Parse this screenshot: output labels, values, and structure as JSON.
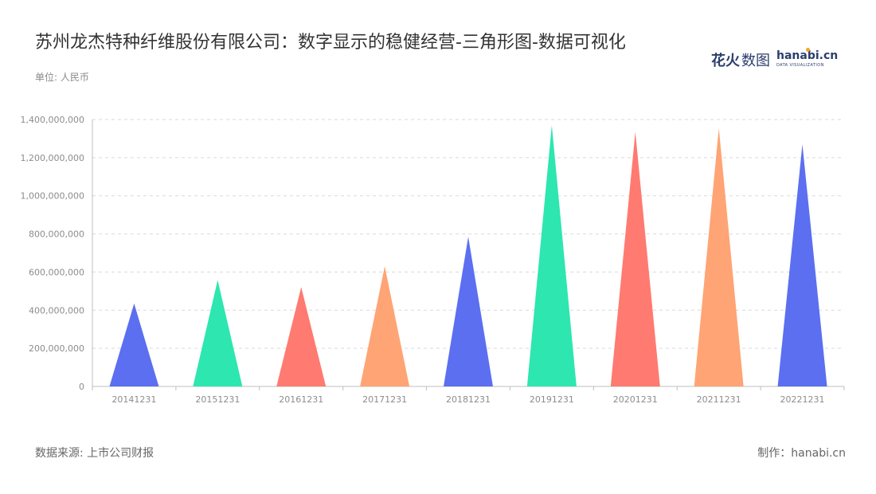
{
  "title": "苏州龙杰特种纤维股份有限公司：数字显示的稳健经营-三角形图-数据可视化",
  "unit": "单位: 人民币",
  "logo": {
    "cn_part1": "花火",
    "cn_part2": "数图",
    "en": "hanabi.cn",
    "tagline": "DATA VISUALIZATION",
    "accent_color": "#f5a623"
  },
  "footer": {
    "source": "数据来源: 上市公司财报",
    "credit": "制作：hanabi.cn"
  },
  "chart_data": {
    "type": "bar",
    "mark_shape": "triangle",
    "categories": [
      "20141231",
      "20151231",
      "20161231",
      "20171231",
      "20181231",
      "20191231",
      "20201231",
      "20211231",
      "20221231"
    ],
    "values": [
      435000000,
      558000000,
      521000000,
      630000000,
      785000000,
      1370000000,
      1335000000,
      1355000000,
      1270000000
    ],
    "colors": [
      "#5b6ff0",
      "#2de6b0",
      "#ff7a70",
      "#ffa474",
      "#5b6ff0",
      "#2de6b0",
      "#ff7a70",
      "#ffa474",
      "#5b6ff0"
    ],
    "y_ticks": [
      0,
      200000000,
      400000000,
      600000000,
      800000000,
      1000000000,
      1200000000,
      1400000000
    ],
    "y_tick_labels": [
      "0",
      "200,000,000",
      "400,000,000",
      "600,000,000",
      "800,000,000",
      "1,000,000,000",
      "1,200,000,000",
      "1,400,000,000"
    ],
    "ylim": [
      0,
      1400000000
    ],
    "grid": true,
    "legend": "none"
  }
}
